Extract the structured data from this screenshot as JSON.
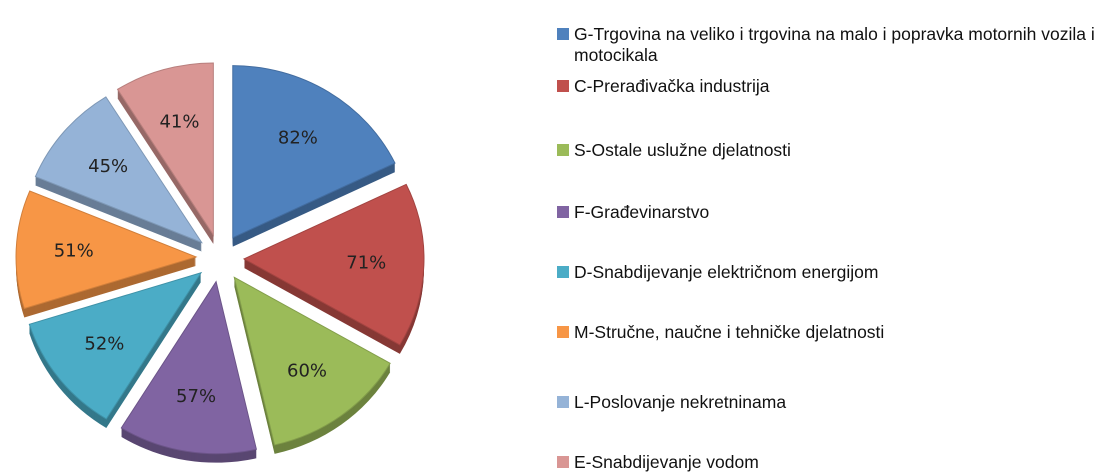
{
  "chart_data": {
    "type": "pie",
    "categories": [
      "G-Trgovina na veliko i trgovina na malo i popravka motornih vozila i motocikala",
      "C-Prerađivačka industrija",
      "S-Ostale uslužne djelatnosti",
      "F-Građevinarstvo",
      "D-Snabdijevanje električnom energijom",
      "M-Stručne, naučne i tehničke djelatnosti",
      "L-Poslovanje nekretninama",
      "E-Snabdijevanje vodom"
    ],
    "values": [
      82,
      71,
      60,
      57,
      52,
      51,
      45,
      41
    ],
    "value_labels": [
      "82%",
      "71%",
      "60%",
      "57%",
      "52%",
      "51%",
      "45%",
      "41%"
    ],
    "colors": [
      "#4f81bd",
      "#c0504d",
      "#9bbb59",
      "#8064a2",
      "#4bacc6",
      "#f79646",
      "#95b3d7",
      "#d99694"
    ],
    "legend": "right"
  }
}
